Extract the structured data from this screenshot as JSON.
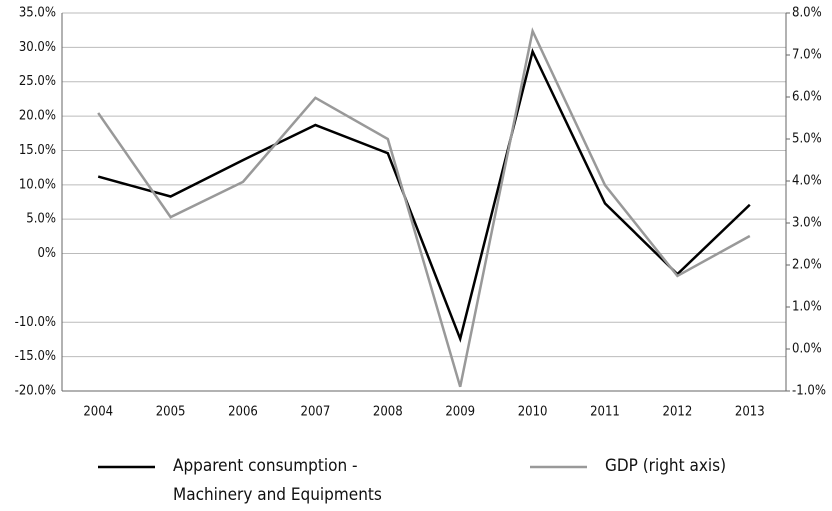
{
  "chart_data": {
    "type": "line",
    "categories": [
      "2004",
      "2005",
      "2006",
      "2007",
      "2008",
      "2009",
      "2010",
      "2011",
      "2012",
      "2013"
    ],
    "series": [
      {
        "name": "Apparent consumption - Machinery and Equipments",
        "color": "#000000",
        "values": [
          11.2,
          8.3,
          13.6,
          18.7,
          14.6,
          -12.4,
          29.4,
          7.3,
          -3.0,
          7.1
        ]
      },
      {
        "name": "GDP (right axis)",
        "color": "#999999",
        "axis": "y2",
        "values": [
          5.62,
          3.14,
          3.98,
          5.98,
          5.0,
          -0.9,
          7.57,
          3.9,
          1.74,
          2.69
        ]
      }
    ],
    "ylim": [
      -20,
      35
    ],
    "yticks": [
      {
        "value": 35,
        "label": "35.0%"
      },
      {
        "value": 30,
        "label": "30.0%"
      },
      {
        "value": 25,
        "label": "25.0%"
      },
      {
        "value": 20,
        "label": "20.0%"
      },
      {
        "value": 15,
        "label": "15.0%"
      },
      {
        "value": 10,
        "label": "10.0%"
      },
      {
        "value": 5,
        "label": "5.0%"
      },
      {
        "value": 0,
        "label": "0%"
      },
      {
        "value": -10,
        "label": "-10.0%"
      },
      {
        "value": -15,
        "label": "-15.0%"
      },
      {
        "value": -20,
        "label": "-20.0%"
      }
    ],
    "y2lim": [
      -1,
      8
    ],
    "y2ticks": [
      {
        "value": 8,
        "label": "8.0%"
      },
      {
        "value": 7,
        "label": "7.0%"
      },
      {
        "value": 6,
        "label": "6.0%"
      },
      {
        "value": 5,
        "label": "5.0%"
      },
      {
        "value": 4,
        "label": "4.0%"
      },
      {
        "value": 3,
        "label": "3.0%"
      },
      {
        "value": 2,
        "label": "2.0%"
      },
      {
        "value": 1,
        "label": "1.0%"
      },
      {
        "value": 0,
        "label": "0.0%"
      },
      {
        "value": -1,
        "label": "-1.0%"
      }
    ],
    "grid": true
  }
}
